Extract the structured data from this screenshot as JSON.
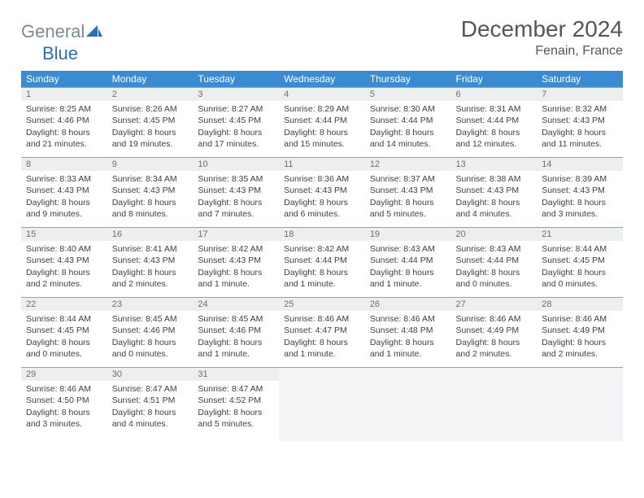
{
  "logo": {
    "general": "General",
    "blue": "Blue"
  },
  "title": "December 2024",
  "location": "Fenain, France",
  "day_headers": [
    "Sunday",
    "Monday",
    "Tuesday",
    "Wednesday",
    "Thursday",
    "Friday",
    "Saturday"
  ],
  "colors": {
    "header_bg": "#3a8bd0",
    "header_fg": "#ffffff",
    "daynum_bg": "#eceef0",
    "rule": "#7aa8cf",
    "text": "#404040"
  },
  "weeks": [
    [
      {
        "n": "1",
        "sr": "Sunrise: 8:25 AM",
        "ss": "Sunset: 4:46 PM",
        "d1": "Daylight: 8 hours",
        "d2": "and 21 minutes."
      },
      {
        "n": "2",
        "sr": "Sunrise: 8:26 AM",
        "ss": "Sunset: 4:45 PM",
        "d1": "Daylight: 8 hours",
        "d2": "and 19 minutes."
      },
      {
        "n": "3",
        "sr": "Sunrise: 8:27 AM",
        "ss": "Sunset: 4:45 PM",
        "d1": "Daylight: 8 hours",
        "d2": "and 17 minutes."
      },
      {
        "n": "4",
        "sr": "Sunrise: 8:29 AM",
        "ss": "Sunset: 4:44 PM",
        "d1": "Daylight: 8 hours",
        "d2": "and 15 minutes."
      },
      {
        "n": "5",
        "sr": "Sunrise: 8:30 AM",
        "ss": "Sunset: 4:44 PM",
        "d1": "Daylight: 8 hours",
        "d2": "and 14 minutes."
      },
      {
        "n": "6",
        "sr": "Sunrise: 8:31 AM",
        "ss": "Sunset: 4:44 PM",
        "d1": "Daylight: 8 hours",
        "d2": "and 12 minutes."
      },
      {
        "n": "7",
        "sr": "Sunrise: 8:32 AM",
        "ss": "Sunset: 4:43 PM",
        "d1": "Daylight: 8 hours",
        "d2": "and 11 minutes."
      }
    ],
    [
      {
        "n": "8",
        "sr": "Sunrise: 8:33 AM",
        "ss": "Sunset: 4:43 PM",
        "d1": "Daylight: 8 hours",
        "d2": "and 9 minutes."
      },
      {
        "n": "9",
        "sr": "Sunrise: 8:34 AM",
        "ss": "Sunset: 4:43 PM",
        "d1": "Daylight: 8 hours",
        "d2": "and 8 minutes."
      },
      {
        "n": "10",
        "sr": "Sunrise: 8:35 AM",
        "ss": "Sunset: 4:43 PM",
        "d1": "Daylight: 8 hours",
        "d2": "and 7 minutes."
      },
      {
        "n": "11",
        "sr": "Sunrise: 8:36 AM",
        "ss": "Sunset: 4:43 PM",
        "d1": "Daylight: 8 hours",
        "d2": "and 6 minutes."
      },
      {
        "n": "12",
        "sr": "Sunrise: 8:37 AM",
        "ss": "Sunset: 4:43 PM",
        "d1": "Daylight: 8 hours",
        "d2": "and 5 minutes."
      },
      {
        "n": "13",
        "sr": "Sunrise: 8:38 AM",
        "ss": "Sunset: 4:43 PM",
        "d1": "Daylight: 8 hours",
        "d2": "and 4 minutes."
      },
      {
        "n": "14",
        "sr": "Sunrise: 8:39 AM",
        "ss": "Sunset: 4:43 PM",
        "d1": "Daylight: 8 hours",
        "d2": "and 3 minutes."
      }
    ],
    [
      {
        "n": "15",
        "sr": "Sunrise: 8:40 AM",
        "ss": "Sunset: 4:43 PM",
        "d1": "Daylight: 8 hours",
        "d2": "and 2 minutes."
      },
      {
        "n": "16",
        "sr": "Sunrise: 8:41 AM",
        "ss": "Sunset: 4:43 PM",
        "d1": "Daylight: 8 hours",
        "d2": "and 2 minutes."
      },
      {
        "n": "17",
        "sr": "Sunrise: 8:42 AM",
        "ss": "Sunset: 4:43 PM",
        "d1": "Daylight: 8 hours",
        "d2": "and 1 minute."
      },
      {
        "n": "18",
        "sr": "Sunrise: 8:42 AM",
        "ss": "Sunset: 4:44 PM",
        "d1": "Daylight: 8 hours",
        "d2": "and 1 minute."
      },
      {
        "n": "19",
        "sr": "Sunrise: 8:43 AM",
        "ss": "Sunset: 4:44 PM",
        "d1": "Daylight: 8 hours",
        "d2": "and 1 minute."
      },
      {
        "n": "20",
        "sr": "Sunrise: 8:43 AM",
        "ss": "Sunset: 4:44 PM",
        "d1": "Daylight: 8 hours",
        "d2": "and 0 minutes."
      },
      {
        "n": "21",
        "sr": "Sunrise: 8:44 AM",
        "ss": "Sunset: 4:45 PM",
        "d1": "Daylight: 8 hours",
        "d2": "and 0 minutes."
      }
    ],
    [
      {
        "n": "22",
        "sr": "Sunrise: 8:44 AM",
        "ss": "Sunset: 4:45 PM",
        "d1": "Daylight: 8 hours",
        "d2": "and 0 minutes."
      },
      {
        "n": "23",
        "sr": "Sunrise: 8:45 AM",
        "ss": "Sunset: 4:46 PM",
        "d1": "Daylight: 8 hours",
        "d2": "and 0 minutes."
      },
      {
        "n": "24",
        "sr": "Sunrise: 8:45 AM",
        "ss": "Sunset: 4:46 PM",
        "d1": "Daylight: 8 hours",
        "d2": "and 1 minute."
      },
      {
        "n": "25",
        "sr": "Sunrise: 8:46 AM",
        "ss": "Sunset: 4:47 PM",
        "d1": "Daylight: 8 hours",
        "d2": "and 1 minute."
      },
      {
        "n": "26",
        "sr": "Sunrise: 8:46 AM",
        "ss": "Sunset: 4:48 PM",
        "d1": "Daylight: 8 hours",
        "d2": "and 1 minute."
      },
      {
        "n": "27",
        "sr": "Sunrise: 8:46 AM",
        "ss": "Sunset: 4:49 PM",
        "d1": "Daylight: 8 hours",
        "d2": "and 2 minutes."
      },
      {
        "n": "28",
        "sr": "Sunrise: 8:46 AM",
        "ss": "Sunset: 4:49 PM",
        "d1": "Daylight: 8 hours",
        "d2": "and 2 minutes."
      }
    ],
    [
      {
        "n": "29",
        "sr": "Sunrise: 8:46 AM",
        "ss": "Sunset: 4:50 PM",
        "d1": "Daylight: 8 hours",
        "d2": "and 3 minutes."
      },
      {
        "n": "30",
        "sr": "Sunrise: 8:47 AM",
        "ss": "Sunset: 4:51 PM",
        "d1": "Daylight: 8 hours",
        "d2": "and 4 minutes."
      },
      {
        "n": "31",
        "sr": "Sunrise: 8:47 AM",
        "ss": "Sunset: 4:52 PM",
        "d1": "Daylight: 8 hours",
        "d2": "and 5 minutes."
      },
      {
        "empty": true
      },
      {
        "empty": true
      },
      {
        "empty": true
      },
      {
        "empty": true
      }
    ]
  ]
}
